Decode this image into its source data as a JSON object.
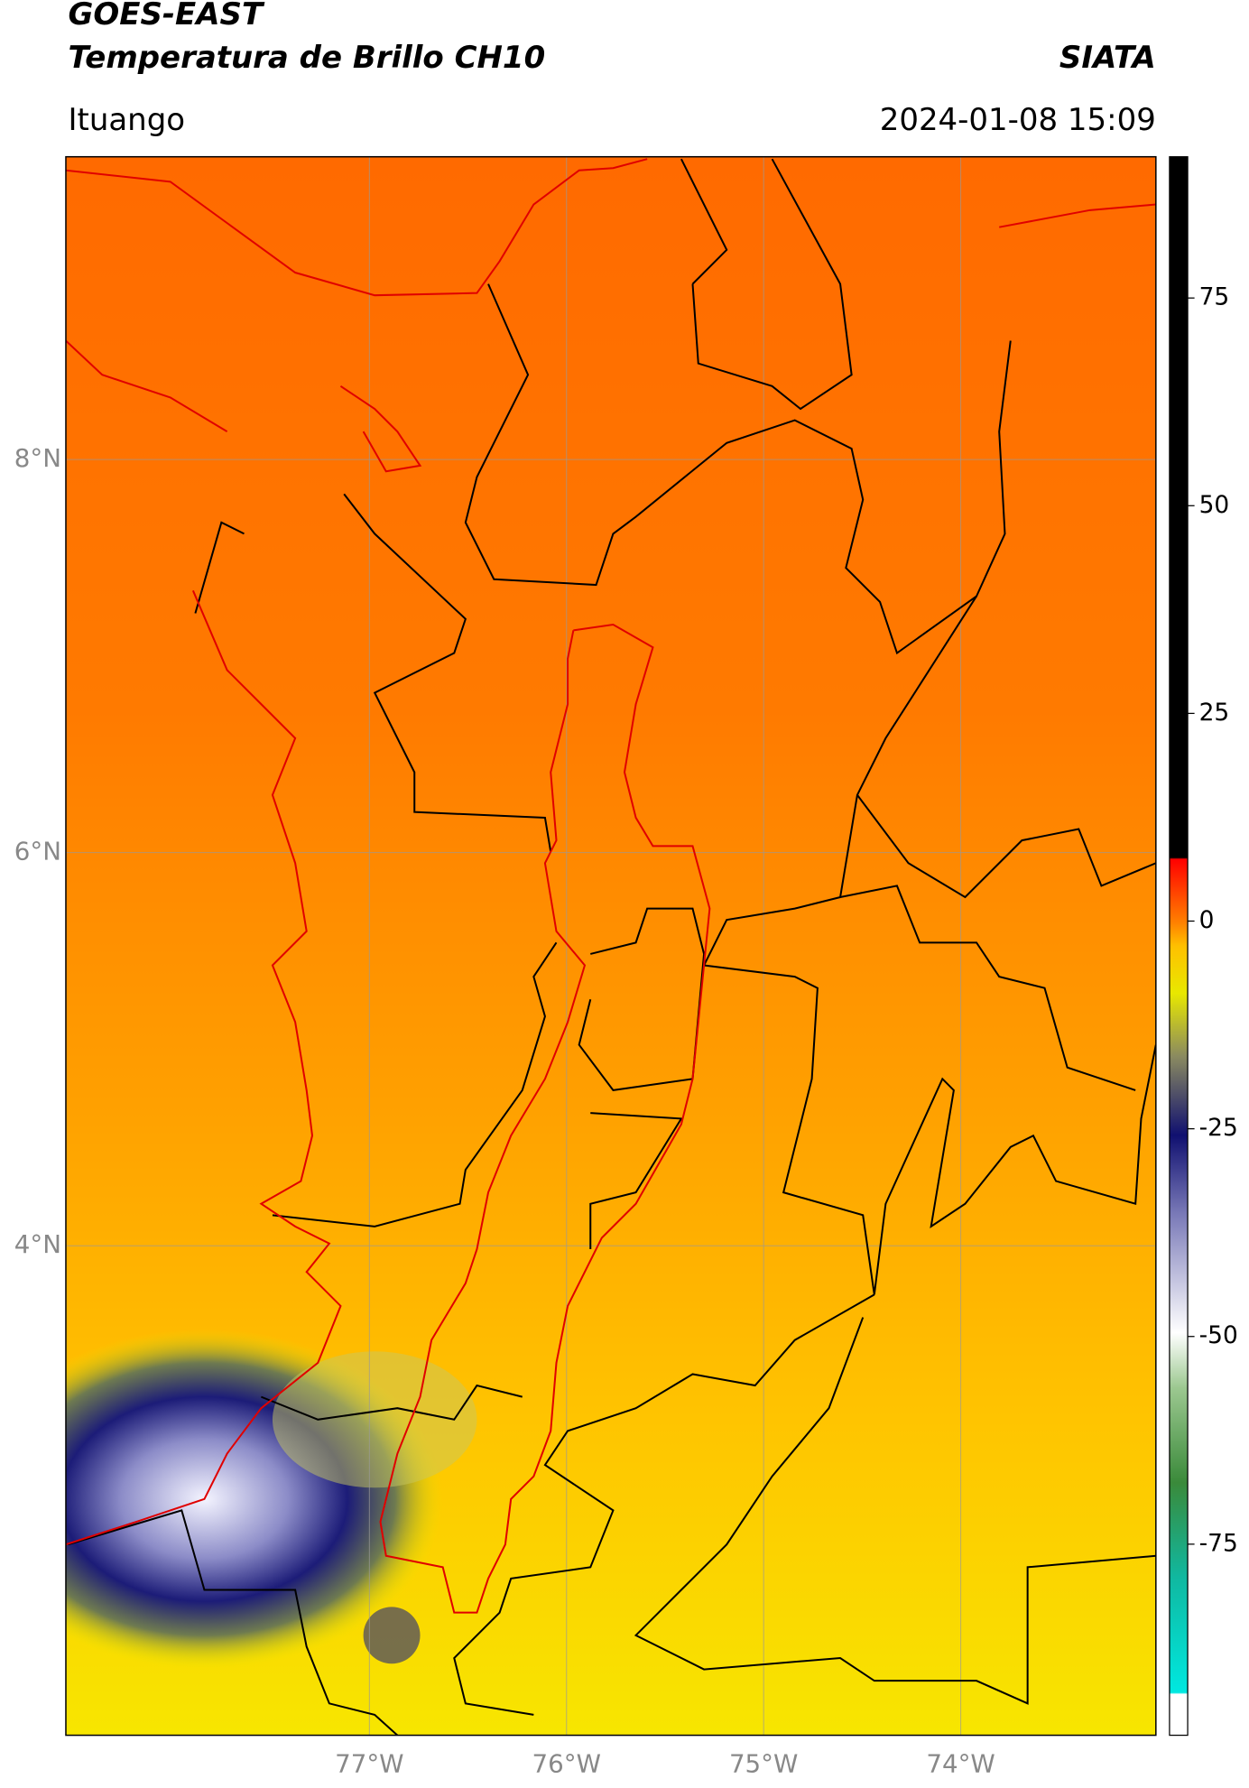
{
  "header": {
    "title": "GOES-EAST",
    "subtitle": "Temperatura de Brillo CH10",
    "brand": "SIATA",
    "location": "Ituango",
    "datetime": "2024-01-08 15:09"
  },
  "map": {
    "xlim": [
      -78.54,
      -73.01
    ],
    "ylim": [
      1.51,
      9.54
    ],
    "xticks": [
      {
        "value": -77,
        "label": "77°W"
      },
      {
        "value": -76,
        "label": "76°W"
      },
      {
        "value": -75,
        "label": "75°W"
      },
      {
        "value": -74,
        "label": "74°W"
      }
    ],
    "yticks": [
      {
        "value": 8,
        "label": "8°N"
      },
      {
        "value": 6,
        "label": "6°N"
      },
      {
        "value": 4,
        "label": "4°N"
      }
    ],
    "grid": true
  },
  "colorbar": {
    "lim": [
      -98,
      92
    ],
    "ticks": [
      75,
      50,
      25,
      0,
      -25,
      -50,
      -75
    ]
  }
}
